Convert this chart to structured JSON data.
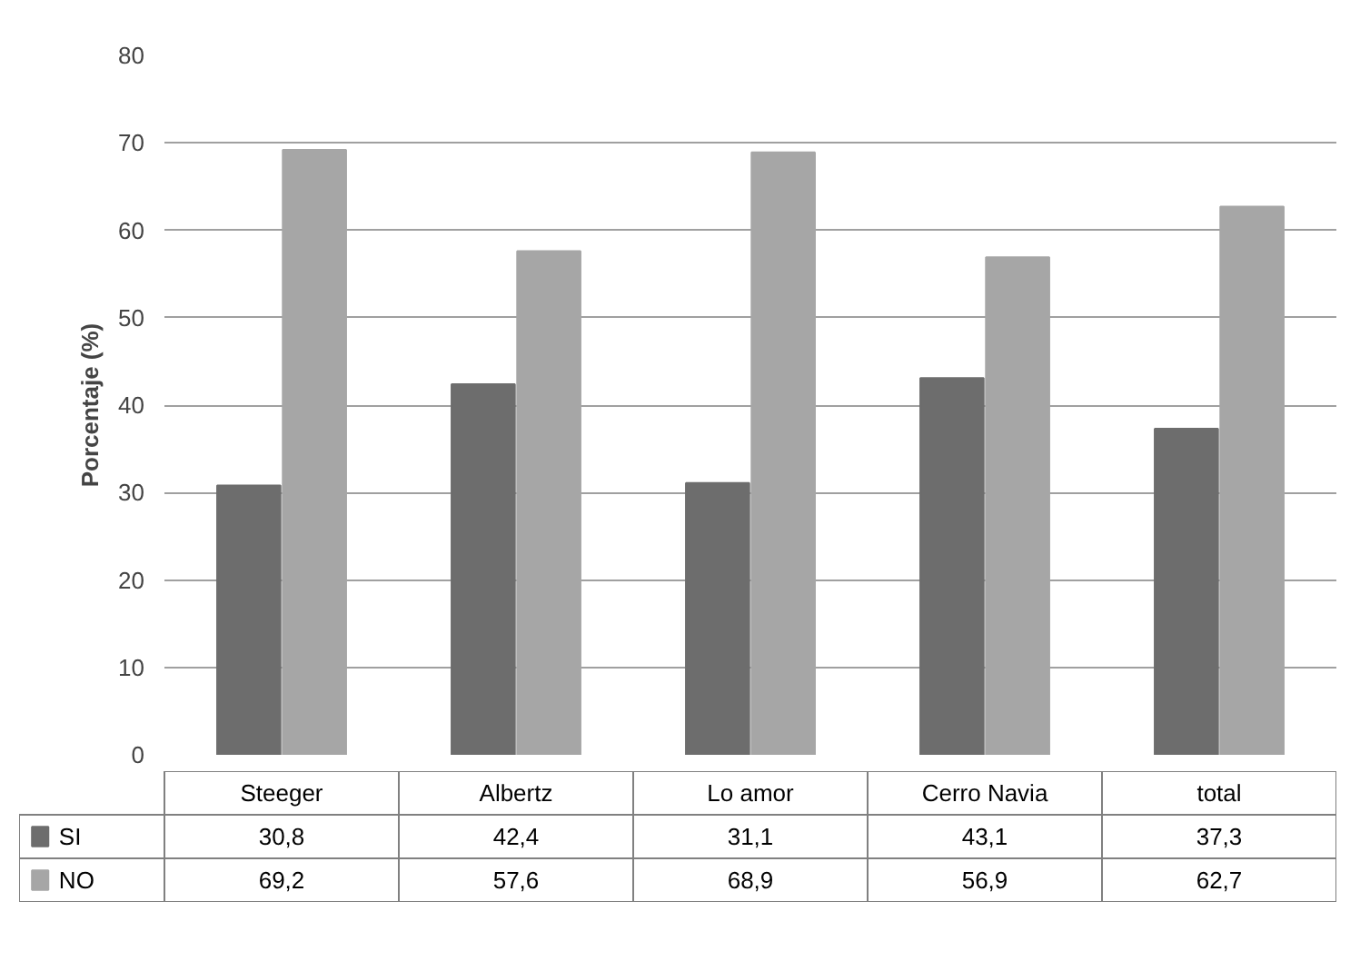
{
  "chart_data": {
    "type": "bar",
    "ylabel": "Porcentaje (%)",
    "categories": [
      "Steeger",
      "Albertz",
      "Lo amor",
      "Cerro Navia",
      "total"
    ],
    "series": [
      {
        "name": "SI",
        "color": "#6d6d6d",
        "values": [
          30.8,
          42.4,
          31.1,
          43.1,
          37.3
        ],
        "value_labels": [
          "30,8",
          "42,4",
          "31,1",
          "43,1",
          "37,3"
        ]
      },
      {
        "name": "NO",
        "color": "#a6a6a6",
        "values": [
          69.2,
          57.6,
          68.9,
          56.9,
          62.7
        ],
        "value_labels": [
          "69,2",
          "57,6",
          "68,9",
          "56,9",
          "62,7"
        ]
      }
    ],
    "ylim": [
      0,
      80
    ],
    "yticks": [
      0,
      10,
      20,
      30,
      40,
      50,
      60,
      70,
      80
    ],
    "grid": "y",
    "legend": "bottom left"
  }
}
